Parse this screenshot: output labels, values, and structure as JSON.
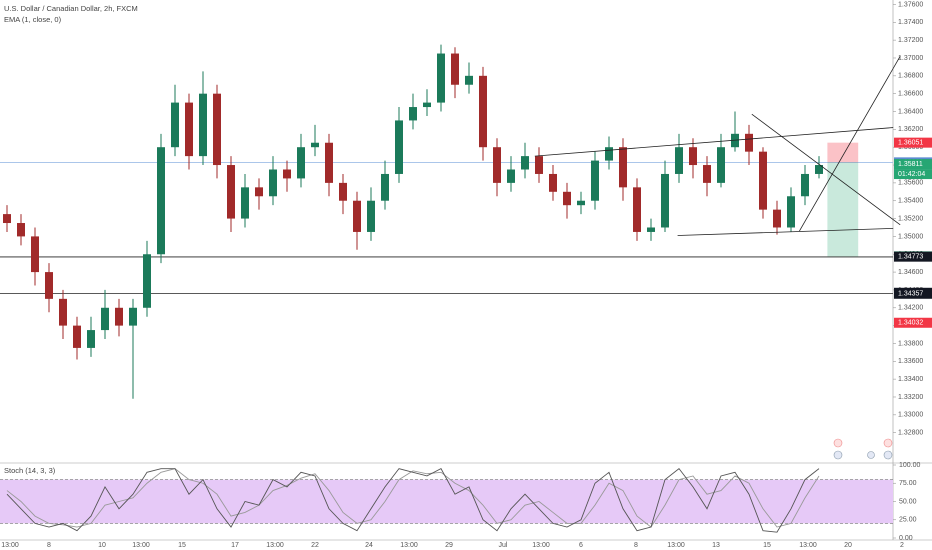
{
  "chart_data": {
    "type": "candlestick",
    "title": "U.S. Dollar / Canadian Dollar, 2h, FXCM",
    "indicator": "EMA (1, close, 0)",
    "open": [
      1.3525,
      1.3515,
      1.35,
      1.346,
      1.343,
      1.34,
      1.3375,
      1.3395,
      1.342,
      1.34,
      1.342,
      1.348,
      1.36,
      1.365,
      1.359,
      1.366,
      1.358,
      1.352,
      1.3555,
      1.3545,
      1.3575,
      1.3565,
      1.36,
      1.3605,
      1.356,
      1.354,
      1.3505,
      1.354,
      1.357,
      1.363,
      1.3645,
      1.365,
      1.3705,
      1.367,
      1.368,
      1.36,
      1.356,
      1.3575,
      1.359,
      1.357,
      1.355,
      1.3535,
      1.354,
      1.3585,
      1.36,
      1.3555,
      1.3505,
      1.351,
      1.357,
      1.36,
      1.358,
      1.356,
      1.36,
      1.3615,
      1.3595,
      1.353,
      1.351,
      1.3545,
      1.357
    ],
    "high": [
      1.3535,
      1.3525,
      1.351,
      1.347,
      1.344,
      1.341,
      1.341,
      1.344,
      1.343,
      1.343,
      1.3495,
      1.3615,
      1.367,
      1.366,
      1.3685,
      1.367,
      1.359,
      1.357,
      1.3565,
      1.359,
      1.3585,
      1.3615,
      1.3625,
      1.3615,
      1.357,
      1.355,
      1.3555,
      1.3585,
      1.3645,
      1.366,
      1.3665,
      1.3715,
      1.3712,
      1.3695,
      1.369,
      1.361,
      1.359,
      1.3605,
      1.36,
      1.358,
      1.356,
      1.355,
      1.3595,
      1.3612,
      1.361,
      1.3565,
      1.352,
      1.3585,
      1.3615,
      1.361,
      1.359,
      1.3615,
      1.364,
      1.3625,
      1.36,
      1.354,
      1.3555,
      1.358,
      1.359
    ],
    "low": [
      1.3505,
      1.349,
      1.3445,
      1.3415,
      1.3385,
      1.3362,
      1.3365,
      1.3385,
      1.3388,
      1.3318,
      1.341,
      1.347,
      1.359,
      1.3575,
      1.358,
      1.3565,
      1.3505,
      1.351,
      1.353,
      1.3535,
      1.355,
      1.3555,
      1.359,
      1.3545,
      1.3525,
      1.3485,
      1.3495,
      1.353,
      1.356,
      1.362,
      1.3635,
      1.364,
      1.3655,
      1.366,
      1.3585,
      1.3545,
      1.355,
      1.3565,
      1.356,
      1.354,
      1.352,
      1.3525,
      1.353,
      1.3575,
      1.354,
      1.3495,
      1.3495,
      1.3505,
      1.356,
      1.3565,
      1.3545,
      1.3555,
      1.3595,
      1.358,
      1.352,
      1.3502,
      1.3505,
      1.3535,
      1.3565
    ],
    "close": [
      1.3515,
      1.35,
      1.346,
      1.343,
      1.34,
      1.3375,
      1.3395,
      1.342,
      1.34,
      1.342,
      1.348,
      1.36,
      1.365,
      1.359,
      1.366,
      1.358,
      1.352,
      1.3555,
      1.3545,
      1.3575,
      1.3565,
      1.36,
      1.3605,
      1.356,
      1.354,
      1.3505,
      1.354,
      1.357,
      1.363,
      1.3645,
      1.365,
      1.3705,
      1.367,
      1.368,
      1.36,
      1.356,
      1.3575,
      1.359,
      1.357,
      1.355,
      1.3535,
      1.354,
      1.3585,
      1.36,
      1.3555,
      1.3505,
      1.351,
      1.357,
      1.36,
      1.358,
      1.356,
      1.36,
      1.3615,
      1.3595,
      1.353,
      1.351,
      1.3545,
      1.357,
      1.358
    ],
    "up_color": "#1b7a5a",
    "down_color": "#a12a2a",
    "ylim": [
      1.3765,
      1.3246
    ],
    "yticks": [
      {
        "value": 1.376,
        "label": "1.37600"
      },
      {
        "value": 1.374,
        "label": "1.37400"
      },
      {
        "value": 1.372,
        "label": "1.37200"
      },
      {
        "value": 1.37,
        "label": "1.37000"
      },
      {
        "value": 1.368,
        "label": "1.36800"
      },
      {
        "value": 1.366,
        "label": "1.36600"
      },
      {
        "value": 1.364,
        "label": "1.36400"
      },
      {
        "value": 1.362,
        "label": "1.36200"
      },
      {
        "value": 1.36,
        "label": "1.36000"
      },
      {
        "value": 1.358,
        "label": "1.35800"
      },
      {
        "value": 1.356,
        "label": "1.35600"
      },
      {
        "value": 1.354,
        "label": "1.35400"
      },
      {
        "value": 1.352,
        "label": "1.35200"
      },
      {
        "value": 1.35,
        "label": "1.35000"
      },
      {
        "value": 1.348,
        "label": "1.34800"
      },
      {
        "value": 1.346,
        "label": "1.34600"
      },
      {
        "value": 1.344,
        "label": "1.34400"
      },
      {
        "value": 1.342,
        "label": "1.34200"
      },
      {
        "value": 1.34,
        "label": "1.34000"
      },
      {
        "value": 1.338,
        "label": "1.33800"
      },
      {
        "value": 1.336,
        "label": "1.33600"
      },
      {
        "value": 1.334,
        "label": "1.33400"
      },
      {
        "value": 1.332,
        "label": "1.33200"
      },
      {
        "value": 1.33,
        "label": "1.33000"
      },
      {
        "value": 1.328,
        "label": "1.32800"
      }
    ],
    "xticks": [
      "13:00",
      "8",
      "10",
      "13:00",
      "15",
      "17",
      "13:00",
      "22",
      "24",
      "13:00",
      "29",
      "Jul",
      "13:00",
      "6",
      "8",
      "13:00",
      "13",
      "15",
      "13:00",
      "20",
      "2"
    ],
    "price_line": 1.3583,
    "hlines": [
      1.3477,
      1.3436
    ],
    "trendlines": [
      {
        "x": [
          37.7,
          63.3
        ],
        "y": [
          1.359,
          1.3622
        ]
      },
      {
        "x": [
          47.9,
          63.3
        ],
        "y": [
          1.3501,
          1.3509
        ]
      },
      {
        "x": [
          53.2,
          63.8
        ],
        "y": [
          1.3637,
          1.3513
        ]
      },
      {
        "x": [
          56.6,
          63.8
        ],
        "y": [
          1.3506,
          1.3702
        ]
      }
    ],
    "position": {
      "x": [
        58.6,
        60.8
      ],
      "entry": 1.3583,
      "stop": 1.36051,
      "target": 1.34776
    },
    "badges": [
      {
        "value": 1.36051,
        "label": "1.36051",
        "color": "#f23645"
      },
      {
        "value": 1.3583,
        "label": "1.35830",
        "color": "#5b8bd0"
      },
      {
        "value": 1.35811,
        "label": "1.35811",
        "color": "#26a673"
      },
      {
        "value": 1.34776,
        "label": "1.34776",
        "color": "#26a673"
      },
      {
        "value": 1.34773,
        "label": "1.34773",
        "color": "#131722"
      },
      {
        "value": 1.34368,
        "label": "1.34368",
        "color": "#131722"
      },
      {
        "value": 1.34357,
        "label": "1.34357",
        "color": "#131722"
      },
      {
        "value": 1.34032,
        "label": "1.34032",
        "color": "#f23645"
      }
    ],
    "countdown": "01:42:04",
    "stoch": {
      "title": "Stoch (14, 3, 3)",
      "k": [
        60,
        40,
        20,
        15,
        20,
        10,
        30,
        70,
        40,
        60,
        90,
        95,
        95,
        60,
        80,
        40,
        15,
        50,
        45,
        80,
        70,
        90,
        85,
        40,
        20,
        10,
        40,
        70,
        95,
        90,
        85,
        95,
        60,
        70,
        25,
        10,
        40,
        60,
        40,
        20,
        15,
        25,
        75,
        90,
        40,
        10,
        15,
        80,
        95,
        70,
        40,
        85,
        90,
        60,
        10,
        8,
        40,
        80,
        95
      ],
      "d": [
        65,
        50,
        30,
        20,
        18,
        15,
        20,
        45,
        50,
        55,
        75,
        90,
        95,
        80,
        75,
        60,
        30,
        35,
        45,
        65,
        72,
        82,
        88,
        65,
        35,
        20,
        25,
        50,
        80,
        92,
        88,
        90,
        75,
        65,
        45,
        20,
        25,
        45,
        50,
        35,
        20,
        20,
        45,
        75,
        65,
        30,
        15,
        45,
        80,
        85,
        60,
        65,
        85,
        75,
        40,
        15,
        20,
        55,
        85
      ],
      "k_color": "#555555",
      "d_color": "#999999",
      "bands": [
        20,
        80
      ],
      "band_color": "#e6c9f7",
      "ylim": [
        0,
        100
      ],
      "yticks": [
        {
          "value": 100,
          "label": "100.00"
        },
        {
          "value": 75,
          "label": "75.00"
        },
        {
          "value": 50,
          "label": "50.00"
        },
        {
          "value": 25,
          "label": "25.00"
        },
        {
          "value": 0,
          "label": "0.00"
        }
      ]
    }
  }
}
